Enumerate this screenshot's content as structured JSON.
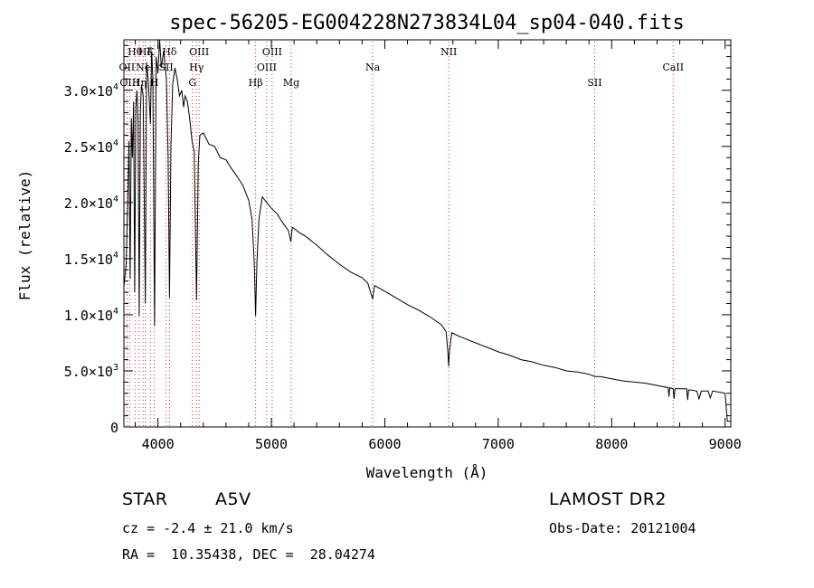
{
  "chart_data": {
    "type": "line",
    "title": "spec-56205-EG004228N273834L04_sp04-040.fits",
    "xlabel": "Wavelength (Å)",
    "ylabel": "Flux (relative)",
    "xlim": [
      3700,
      9050
    ],
    "ylim": [
      0,
      34500
    ],
    "grid": false,
    "x_ticks": [
      {
        "value": 4000,
        "label": "4000"
      },
      {
        "value": 5000,
        "label": "5000"
      },
      {
        "value": 6000,
        "label": "6000"
      },
      {
        "value": 7000,
        "label": "7000"
      },
      {
        "value": 8000,
        "label": "8000"
      },
      {
        "value": 9000,
        "label": "9000"
      }
    ],
    "y_ticks": [
      {
        "value": 0,
        "mant": "0",
        "exp": ""
      },
      {
        "value": 5000,
        "mant": "5.0×10",
        "exp": "3"
      },
      {
        "value": 10000,
        "mant": "1.0×10",
        "exp": "4"
      },
      {
        "value": 15000,
        "mant": "1.5×10",
        "exp": "4"
      },
      {
        "value": 20000,
        "mant": "2.0×10",
        "exp": "4"
      },
      {
        "value": 25000,
        "mant": "2.5×10",
        "exp": "4"
      },
      {
        "value": 30000,
        "mant": "3.0×10",
        "exp": "4"
      }
    ],
    "series": [
      {
        "values": [
          [
            3700,
            12500
          ],
          [
            3720,
            14500
          ],
          [
            3735,
            21000
          ],
          [
            3745,
            25500
          ],
          [
            3755,
            13200
          ],
          [
            3765,
            27500
          ],
          [
            3775,
            24000
          ],
          [
            3785,
            29000
          ],
          [
            3795,
            12000
          ],
          [
            3805,
            28500
          ],
          [
            3815,
            30000
          ],
          [
            3825,
            27000
          ],
          [
            3835,
            9900
          ],
          [
            3845,
            28000
          ],
          [
            3855,
            30500
          ],
          [
            3870,
            29500
          ],
          [
            3889,
            11000
          ],
          [
            3900,
            32500
          ],
          [
            3915,
            30800
          ],
          [
            3934,
            27000
          ],
          [
            3945,
            33500
          ],
          [
            3955,
            31000
          ],
          [
            3970,
            9000
          ],
          [
            3985,
            33000
          ],
          [
            4000,
            31500
          ],
          [
            4015,
            34500
          ],
          [
            4030,
            32000
          ],
          [
            4050,
            33500
          ],
          [
            4075,
            31000
          ],
          [
            4090,
            24000
          ],
          [
            4102,
            11500
          ],
          [
            4115,
            25000
          ],
          [
            4130,
            30500
          ],
          [
            4150,
            32000
          ],
          [
            4170,
            31000
          ],
          [
            4190,
            29500
          ],
          [
            4210,
            30000
          ],
          [
            4226,
            28500
          ],
          [
            4240,
            29500
          ],
          [
            4260,
            29000
          ],
          [
            4280,
            27500
          ],
          [
            4300,
            25500
          ],
          [
            4320,
            24500
          ],
          [
            4340,
            11300
          ],
          [
            4355,
            23500
          ],
          [
            4370,
            26000
          ],
          [
            4400,
            26200
          ],
          [
            4450,
            25200
          ],
          [
            4500,
            25000
          ],
          [
            4550,
            24000
          ],
          [
            4600,
            23800
          ],
          [
            4650,
            23000
          ],
          [
            4700,
            22300
          ],
          [
            4750,
            21500
          ],
          [
            4800,
            20200
          ],
          [
            4830,
            18500
          ],
          [
            4850,
            14500
          ],
          [
            4861,
            9900
          ],
          [
            4872,
            14500
          ],
          [
            4890,
            18500
          ],
          [
            4920,
            20500
          ],
          [
            4960,
            20000
          ],
          [
            5000,
            19500
          ],
          [
            5050,
            19000
          ],
          [
            5100,
            18200
          ],
          [
            5150,
            17500
          ],
          [
            5172,
            16500
          ],
          [
            5185,
            17800
          ],
          [
            5250,
            17300
          ],
          [
            5300,
            17000
          ],
          [
            5400,
            16200
          ],
          [
            5500,
            15300
          ],
          [
            5600,
            14500
          ],
          [
            5700,
            13800
          ],
          [
            5800,
            13300
          ],
          [
            5850,
            12800
          ],
          [
            5893,
            11400
          ],
          [
            5910,
            12600
          ],
          [
            6000,
            12100
          ],
          [
            6100,
            11500
          ],
          [
            6200,
            10900
          ],
          [
            6300,
            10400
          ],
          [
            6400,
            9800
          ],
          [
            6500,
            9100
          ],
          [
            6540,
            8500
          ],
          [
            6555,
            6800
          ],
          [
            6563,
            5400
          ],
          [
            6570,
            6800
          ],
          [
            6590,
            8400
          ],
          [
            6650,
            8100
          ],
          [
            6800,
            7500
          ],
          [
            6900,
            7100
          ],
          [
            7000,
            6700
          ],
          [
            7100,
            6400
          ],
          [
            7200,
            6000
          ],
          [
            7300,
            5800
          ],
          [
            7400,
            5500
          ],
          [
            7500,
            5300
          ],
          [
            7600,
            5000
          ],
          [
            7700,
            4900
          ],
          [
            7800,
            4700
          ],
          [
            7850,
            4500
          ],
          [
            7900,
            4500
          ],
          [
            8000,
            4300
          ],
          [
            8100,
            4100
          ],
          [
            8200,
            4000
          ],
          [
            8300,
            3900
          ],
          [
            8400,
            3700
          ],
          [
            8498,
            3500
          ],
          [
            8505,
            2700
          ],
          [
            8512,
            3500
          ],
          [
            8542,
            3400
          ],
          [
            8550,
            2500
          ],
          [
            8558,
            3400
          ],
          [
            8600,
            3400
          ],
          [
            8662,
            3400
          ],
          [
            8670,
            2400
          ],
          [
            8678,
            3300
          ],
          [
            8700,
            3300
          ],
          [
            8750,
            3200
          ],
          [
            8770,
            2500
          ],
          [
            8790,
            3200
          ],
          [
            8850,
            3200
          ],
          [
            8870,
            2600
          ],
          [
            8890,
            3200
          ],
          [
            8950,
            3100
          ],
          [
            9000,
            3000
          ],
          [
            9020,
            500
          ],
          [
            9045,
            500
          ]
        ]
      }
    ],
    "lines": [
      {
        "wl": 3727,
        "label": "OII",
        "tier": "r1"
      },
      {
        "wl": 3751,
        "label": "OIII",
        "tier": "r2"
      },
      {
        "wl": 3798,
        "label": "Hθ",
        "tier": "r0"
      },
      {
        "wl": 3835,
        "label": "Hη",
        "tier": "r2"
      },
      {
        "wl": 3869,
        "label": "Ne",
        "tier": "r1"
      },
      {
        "wl": 3889,
        "label": "Hζ",
        "tier": "r0"
      },
      {
        "wl": 3934,
        "label": "K",
        "tier": "r0"
      },
      {
        "wl": 3968,
        "label": "H",
        "tier": "r2"
      },
      {
        "wl": 4072,
        "label": "SII",
        "tier": "r1"
      },
      {
        "wl": 4102,
        "label": "Hδ",
        "tier": "r0"
      },
      {
        "wl": 4304,
        "label": "G",
        "tier": "r2"
      },
      {
        "wl": 4340,
        "label": "Hγ",
        "tier": "r1"
      },
      {
        "wl": 4363,
        "label": "OIII",
        "tier": "r0"
      },
      {
        "wl": 4861,
        "label": "Hβ",
        "tier": "r2"
      },
      {
        "wl": 4959,
        "label": "OIII",
        "tier": "r1"
      },
      {
        "wl": 5007,
        "label": "OIII",
        "tier": "r0"
      },
      {
        "wl": 5175,
        "label": "Mg",
        "tier": "r2"
      },
      {
        "wl": 5893,
        "label": "Na",
        "tier": "r1"
      },
      {
        "wl": 6564,
        "label": "NII",
        "tier": "r0"
      },
      {
        "wl": 7850,
        "label": "SII",
        "tier": "r2"
      },
      {
        "wl": 8542,
        "label": "CaII",
        "tier": "r1"
      }
    ]
  },
  "info": {
    "class": "STAR",
    "subclass": "A5V",
    "survey": "LAMOST DR2",
    "redshift": "cz = -2.4 ± 21.0 km/s",
    "obsdate": "Obs-Date: 20121004",
    "coords": "RA =  10.35438, DEC =  28.04274"
  }
}
